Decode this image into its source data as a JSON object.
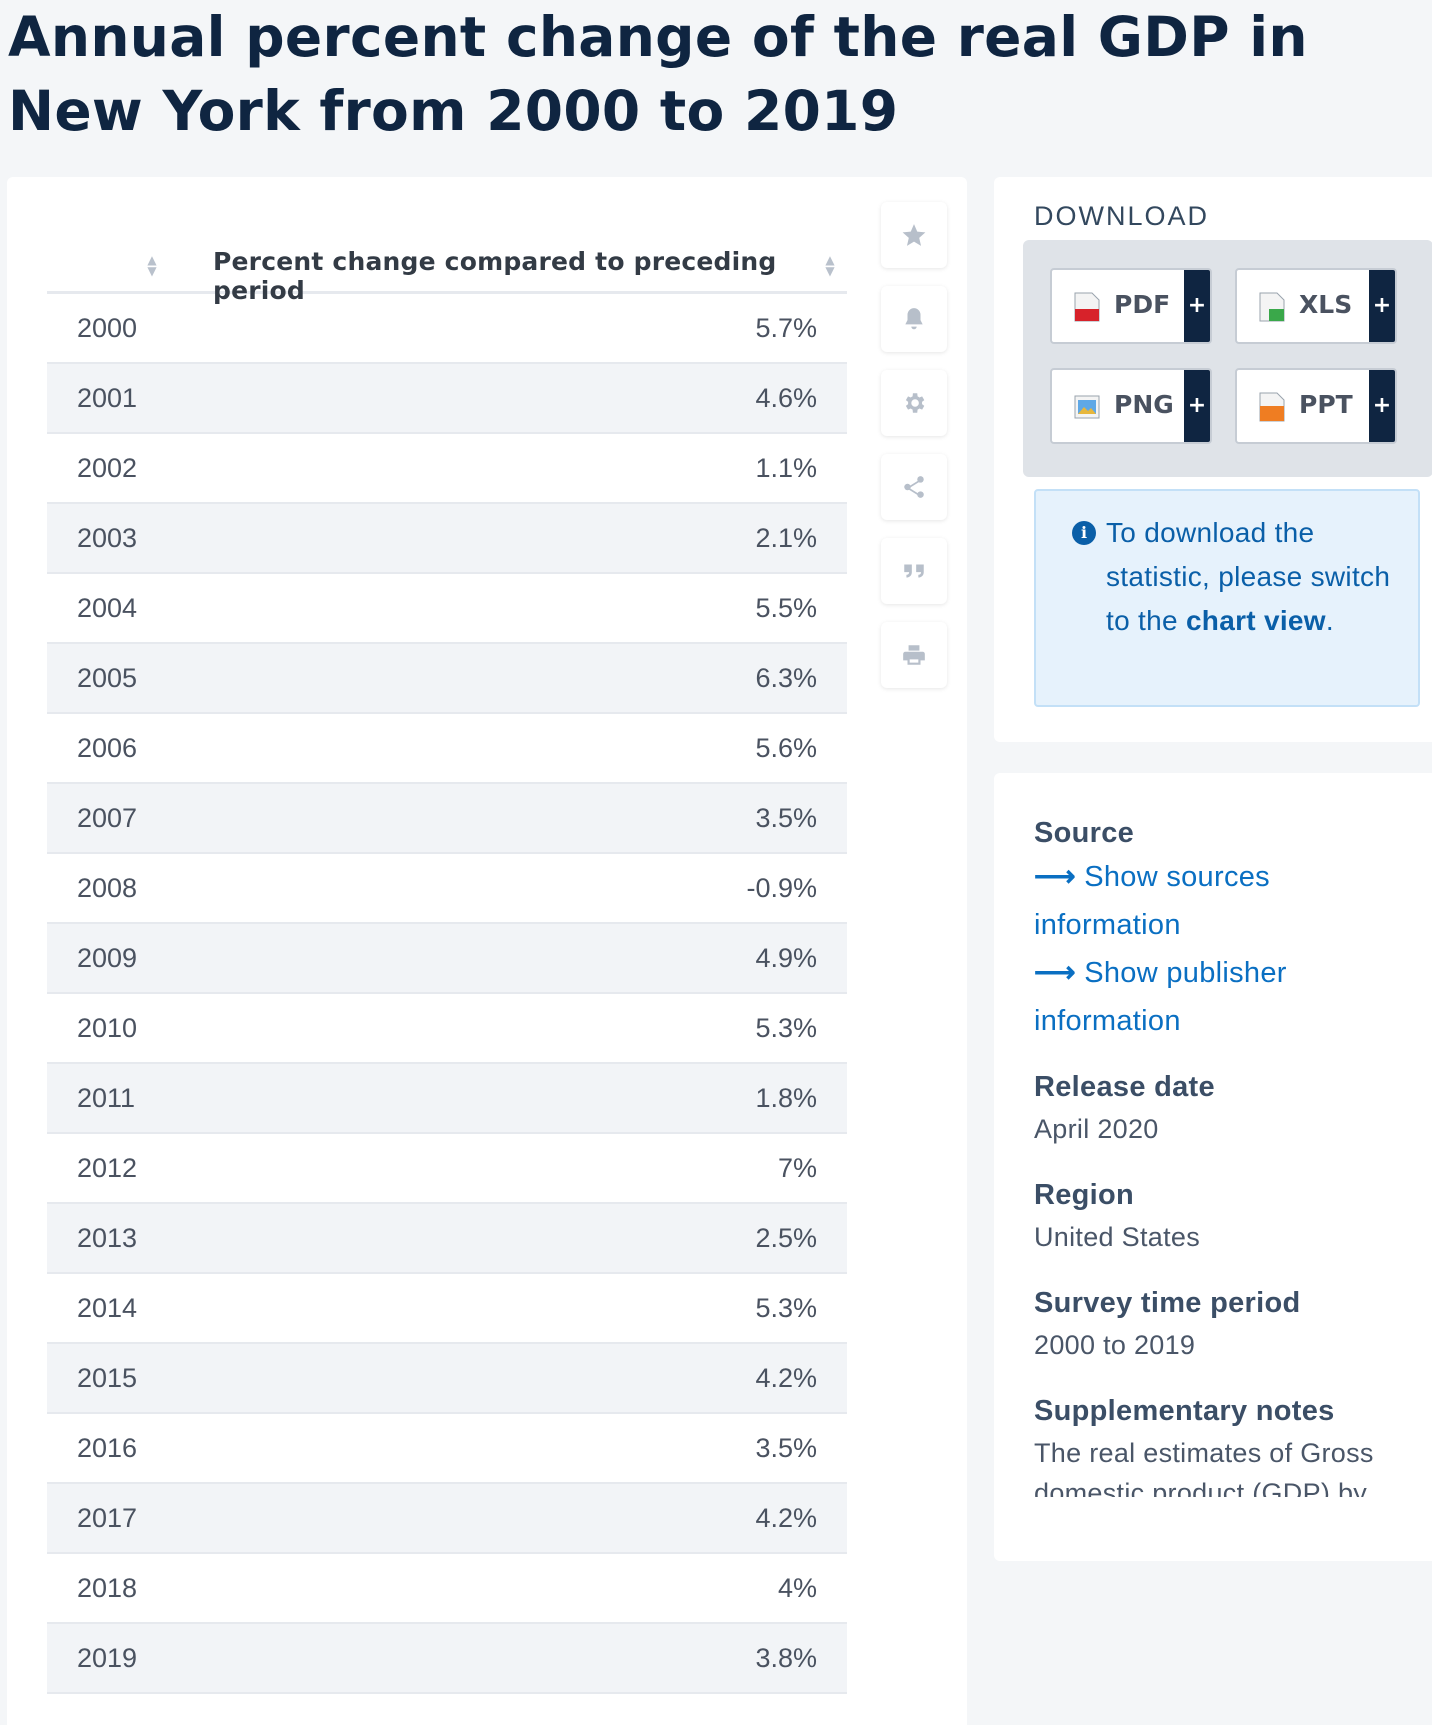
{
  "title": "Annual percent change of the real GDP in New York from 2000 to 2019",
  "table": {
    "column_header": "Percent change compared to preceding period",
    "rows": [
      {
        "year": "2000",
        "value": "5.7%"
      },
      {
        "year": "2001",
        "value": "4.6%"
      },
      {
        "year": "2002",
        "value": "1.1%"
      },
      {
        "year": "2003",
        "value": "2.1%"
      },
      {
        "year": "2004",
        "value": "5.5%"
      },
      {
        "year": "2005",
        "value": "6.3%"
      },
      {
        "year": "2006",
        "value": "5.6%"
      },
      {
        "year": "2007",
        "value": "3.5%"
      },
      {
        "year": "2008",
        "value": "-0.9%"
      },
      {
        "year": "2009",
        "value": "4.9%"
      },
      {
        "year": "2010",
        "value": "5.3%"
      },
      {
        "year": "2011",
        "value": "1.8%"
      },
      {
        "year": "2012",
        "value": "7%"
      },
      {
        "year": "2013",
        "value": "2.5%"
      },
      {
        "year": "2014",
        "value": "5.3%"
      },
      {
        "year": "2015",
        "value": "4.2%"
      },
      {
        "year": "2016",
        "value": "3.5%"
      },
      {
        "year": "2017",
        "value": "4.2%"
      },
      {
        "year": "2018",
        "value": "4%"
      },
      {
        "year": "2019",
        "value": "3.8%"
      }
    ]
  },
  "toolbar": {
    "icons": [
      "star-icon",
      "bell-icon",
      "gear-icon",
      "share-icon",
      "quote-icon",
      "print-icon"
    ]
  },
  "download": {
    "title": "DOWNLOAD",
    "buttons": [
      {
        "label": "PDF",
        "plus": "+"
      },
      {
        "label": "XLS",
        "plus": "+"
      },
      {
        "label": "PNG",
        "plus": "+"
      },
      {
        "label": "PPT",
        "plus": "+"
      }
    ],
    "info_text": "To download the statistic, please switch to the ",
    "info_link": "chart view",
    "info_end": "."
  },
  "source": {
    "source_label": "Source",
    "show_sources": "Show sources information",
    "show_publisher": "Show publisher information",
    "release_label": "Release date",
    "release_value": "April 2020",
    "region_label": "Region",
    "region_value": "United States",
    "survey_label": "Survey time period",
    "survey_value": "2000 to 2019",
    "notes_label": "Supplementary notes",
    "notes_value": "The real estimates of Gross domestic product (GDP) by"
  },
  "colors": {
    "title": "#0f2541",
    "link": "#0a6fc2",
    "dark_accent": "#0f2541",
    "info_bg": "#e6f2fc"
  }
}
